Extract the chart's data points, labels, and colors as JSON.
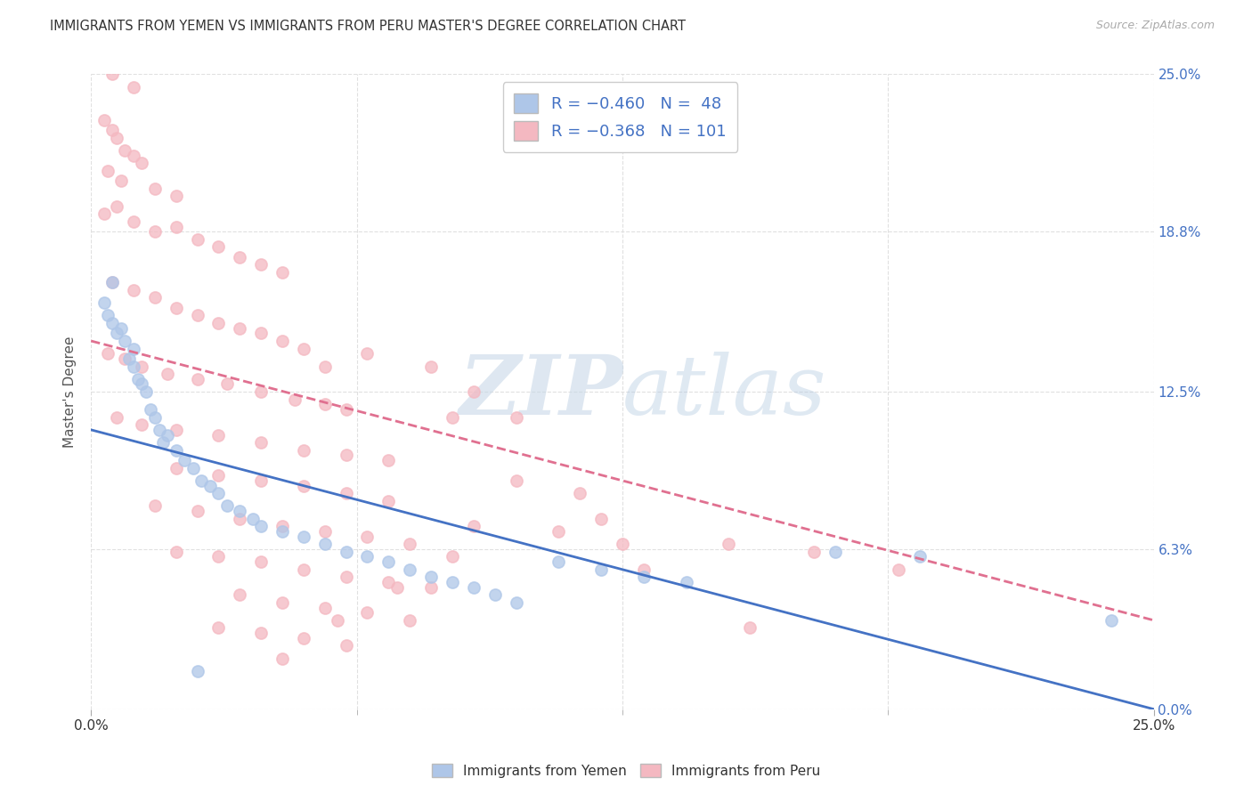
{
  "title": "IMMIGRANTS FROM YEMEN VS IMMIGRANTS FROM PERU MASTER'S DEGREE CORRELATION CHART",
  "source": "Source: ZipAtlas.com",
  "ylabel": "Master's Degree",
  "ytick_labels": [
    "0.0%",
    "6.3%",
    "12.5%",
    "18.8%",
    "25.0%"
  ],
  "ytick_values": [
    0.0,
    6.3,
    12.5,
    18.8,
    25.0
  ],
  "xtick_labels_bottom": [
    "0.0%",
    "25.0%"
  ],
  "xtick_values_bottom": [
    0.0,
    25.0
  ],
  "xtick_minor_values": [
    0.0,
    3.125,
    6.25,
    9.375,
    12.5,
    15.625,
    18.75,
    21.875,
    25.0
  ],
  "xlim": [
    0.0,
    25.0
  ],
  "ylim": [
    0.0,
    25.0
  ],
  "legend1_color": "#aec6e8",
  "legend2_color": "#f4b8c1",
  "watermark": "ZIPatlas",
  "yemen_color": "#aec6e8",
  "peru_color": "#f4b8c1",
  "yemen_line_color": "#4472c4",
  "peru_line_color": "#e07090",
  "legend_label1": "Immigrants from Yemen",
  "legend_label2": "Immigrants from Peru",
  "yemen_line": [
    0.0,
    11.0,
    25.0,
    0.0
  ],
  "peru_line": [
    0.0,
    14.5,
    25.0,
    3.5
  ],
  "yemen_scatter": [
    [
      0.3,
      16.0
    ],
    [
      0.4,
      15.5
    ],
    [
      0.5,
      16.8
    ],
    [
      0.5,
      15.2
    ],
    [
      0.6,
      14.8
    ],
    [
      0.7,
      15.0
    ],
    [
      0.8,
      14.5
    ],
    [
      0.9,
      13.8
    ],
    [
      1.0,
      14.2
    ],
    [
      1.0,
      13.5
    ],
    [
      1.1,
      13.0
    ],
    [
      1.2,
      12.8
    ],
    [
      1.3,
      12.5
    ],
    [
      1.4,
      11.8
    ],
    [
      1.5,
      11.5
    ],
    [
      1.6,
      11.0
    ],
    [
      1.7,
      10.5
    ],
    [
      1.8,
      10.8
    ],
    [
      2.0,
      10.2
    ],
    [
      2.2,
      9.8
    ],
    [
      2.4,
      9.5
    ],
    [
      2.6,
      9.0
    ],
    [
      2.8,
      8.8
    ],
    [
      3.0,
      8.5
    ],
    [
      3.2,
      8.0
    ],
    [
      3.5,
      7.8
    ],
    [
      3.8,
      7.5
    ],
    [
      4.0,
      7.2
    ],
    [
      4.5,
      7.0
    ],
    [
      5.0,
      6.8
    ],
    [
      5.5,
      6.5
    ],
    [
      6.0,
      6.2
    ],
    [
      6.5,
      6.0
    ],
    [
      7.0,
      5.8
    ],
    [
      7.5,
      5.5
    ],
    [
      8.0,
      5.2
    ],
    [
      8.5,
      5.0
    ],
    [
      9.0,
      4.8
    ],
    [
      9.5,
      4.5
    ],
    [
      10.0,
      4.2
    ],
    [
      11.0,
      5.8
    ],
    [
      12.0,
      5.5
    ],
    [
      13.0,
      5.2
    ],
    [
      14.0,
      5.0
    ],
    [
      17.5,
      6.2
    ],
    [
      19.5,
      6.0
    ],
    [
      24.0,
      3.5
    ],
    [
      2.5,
      1.5
    ]
  ],
  "peru_scatter": [
    [
      0.3,
      23.2
    ],
    [
      0.5,
      22.8
    ],
    [
      0.6,
      22.5
    ],
    [
      0.8,
      22.0
    ],
    [
      1.0,
      21.8
    ],
    [
      0.4,
      21.2
    ],
    [
      0.7,
      20.8
    ],
    [
      1.2,
      21.5
    ],
    [
      1.5,
      20.5
    ],
    [
      2.0,
      20.2
    ],
    [
      0.3,
      19.5
    ],
    [
      0.6,
      19.8
    ],
    [
      1.0,
      19.2
    ],
    [
      1.5,
      18.8
    ],
    [
      2.0,
      19.0
    ],
    [
      2.5,
      18.5
    ],
    [
      3.0,
      18.2
    ],
    [
      3.5,
      17.8
    ],
    [
      4.0,
      17.5
    ],
    [
      4.5,
      17.2
    ],
    [
      0.5,
      16.8
    ],
    [
      1.0,
      16.5
    ],
    [
      1.5,
      16.2
    ],
    [
      2.0,
      15.8
    ],
    [
      2.5,
      15.5
    ],
    [
      3.0,
      15.2
    ],
    [
      3.5,
      15.0
    ],
    [
      4.0,
      14.8
    ],
    [
      4.5,
      14.5
    ],
    [
      5.0,
      14.2
    ],
    [
      0.4,
      14.0
    ],
    [
      0.8,
      13.8
    ],
    [
      1.2,
      13.5
    ],
    [
      1.8,
      13.2
    ],
    [
      2.5,
      13.0
    ],
    [
      3.2,
      12.8
    ],
    [
      4.0,
      12.5
    ],
    [
      4.8,
      12.2
    ],
    [
      5.5,
      12.0
    ],
    [
      6.0,
      11.8
    ],
    [
      0.6,
      11.5
    ],
    [
      1.2,
      11.2
    ],
    [
      2.0,
      11.0
    ],
    [
      3.0,
      10.8
    ],
    [
      4.0,
      10.5
    ],
    [
      5.0,
      10.2
    ],
    [
      6.0,
      10.0
    ],
    [
      7.0,
      9.8
    ],
    [
      2.0,
      9.5
    ],
    [
      3.0,
      9.2
    ],
    [
      4.0,
      9.0
    ],
    [
      5.0,
      8.8
    ],
    [
      6.0,
      8.5
    ],
    [
      7.0,
      8.2
    ],
    [
      1.5,
      8.0
    ],
    [
      2.5,
      7.8
    ],
    [
      3.5,
      7.5
    ],
    [
      4.5,
      7.2
    ],
    [
      5.5,
      7.0
    ],
    [
      6.5,
      6.8
    ],
    [
      7.5,
      6.5
    ],
    [
      2.0,
      6.2
    ],
    [
      3.0,
      6.0
    ],
    [
      4.0,
      5.8
    ],
    [
      5.0,
      5.5
    ],
    [
      6.0,
      5.2
    ],
    [
      7.0,
      5.0
    ],
    [
      8.0,
      4.8
    ],
    [
      3.5,
      4.5
    ],
    [
      4.5,
      4.2
    ],
    [
      5.5,
      4.0
    ],
    [
      6.5,
      3.8
    ],
    [
      7.5,
      3.5
    ],
    [
      3.0,
      3.2
    ],
    [
      4.0,
      3.0
    ],
    [
      5.0,
      2.8
    ],
    [
      6.0,
      2.5
    ],
    [
      5.5,
      13.5
    ],
    [
      8.5,
      11.5
    ],
    [
      9.0,
      7.2
    ],
    [
      10.0,
      11.5
    ],
    [
      11.0,
      7.0
    ],
    [
      12.5,
      6.5
    ],
    [
      15.0,
      6.5
    ],
    [
      17.0,
      6.2
    ],
    [
      19.0,
      5.5
    ],
    [
      0.5,
      25.0
    ],
    [
      1.0,
      24.5
    ],
    [
      6.5,
      14.0
    ],
    [
      8.0,
      13.5
    ],
    [
      9.0,
      12.5
    ],
    [
      10.0,
      9.0
    ],
    [
      11.5,
      8.5
    ],
    [
      12.0,
      7.5
    ],
    [
      13.0,
      5.5
    ],
    [
      4.5,
      2.0
    ],
    [
      5.8,
      3.5
    ],
    [
      7.2,
      4.8
    ],
    [
      8.5,
      6.0
    ],
    [
      15.5,
      3.2
    ]
  ],
  "background_color": "#ffffff",
  "grid_color": "#dddddd"
}
